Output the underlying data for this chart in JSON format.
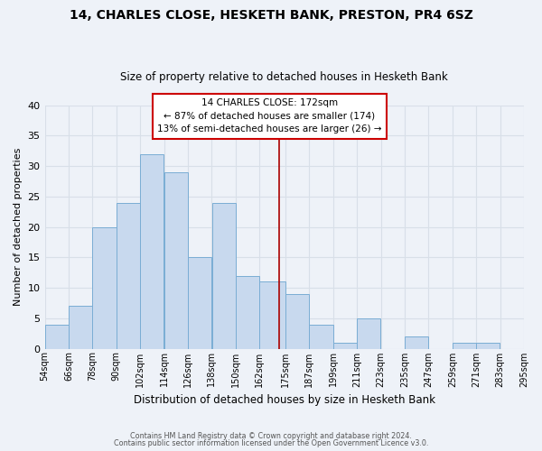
{
  "title": "14, CHARLES CLOSE, HESKETH BANK, PRESTON, PR4 6SZ",
  "subtitle": "Size of property relative to detached houses in Hesketh Bank",
  "xlabel": "Distribution of detached houses by size in Hesketh Bank",
  "ylabel": "Number of detached properties",
  "bin_labels": [
    "54sqm",
    "66sqm",
    "78sqm",
    "90sqm",
    "102sqm",
    "114sqm",
    "126sqm",
    "138sqm",
    "150sqm",
    "162sqm",
    "175sqm",
    "187sqm",
    "199sqm",
    "211sqm",
    "223sqm",
    "235sqm",
    "247sqm",
    "259sqm",
    "271sqm",
    "283sqm",
    "295sqm"
  ],
  "bar_heights": [
    4,
    7,
    20,
    24,
    32,
    29,
    15,
    24,
    12,
    11,
    9,
    4,
    1,
    5,
    0,
    2,
    0,
    1,
    1,
    0
  ],
  "bin_edges": [
    54,
    66,
    78,
    90,
    102,
    114,
    126,
    138,
    150,
    162,
    175,
    187,
    199,
    211,
    223,
    235,
    247,
    259,
    271,
    283,
    295
  ],
  "bar_color": "#c8d9ee",
  "bar_edge_color": "#7aadd4",
  "ylim": [
    0,
    40
  ],
  "yticks": [
    0,
    5,
    10,
    15,
    20,
    25,
    30,
    35,
    40
  ],
  "property_size": 172,
  "vline_color": "#aa0000",
  "annotation_title": "14 CHARLES CLOSE: 172sqm",
  "annotation_line1": "← 87% of detached houses are smaller (174)",
  "annotation_line2": "13% of semi-detached houses are larger (26) →",
  "annotation_box_color": "#cc0000",
  "footer_line1": "Contains HM Land Registry data © Crown copyright and database right 2024.",
  "footer_line2": "Contains public sector information licensed under the Open Government Licence v3.0.",
  "bg_color": "#eef2f8",
  "grid_color": "#d8dfe8"
}
